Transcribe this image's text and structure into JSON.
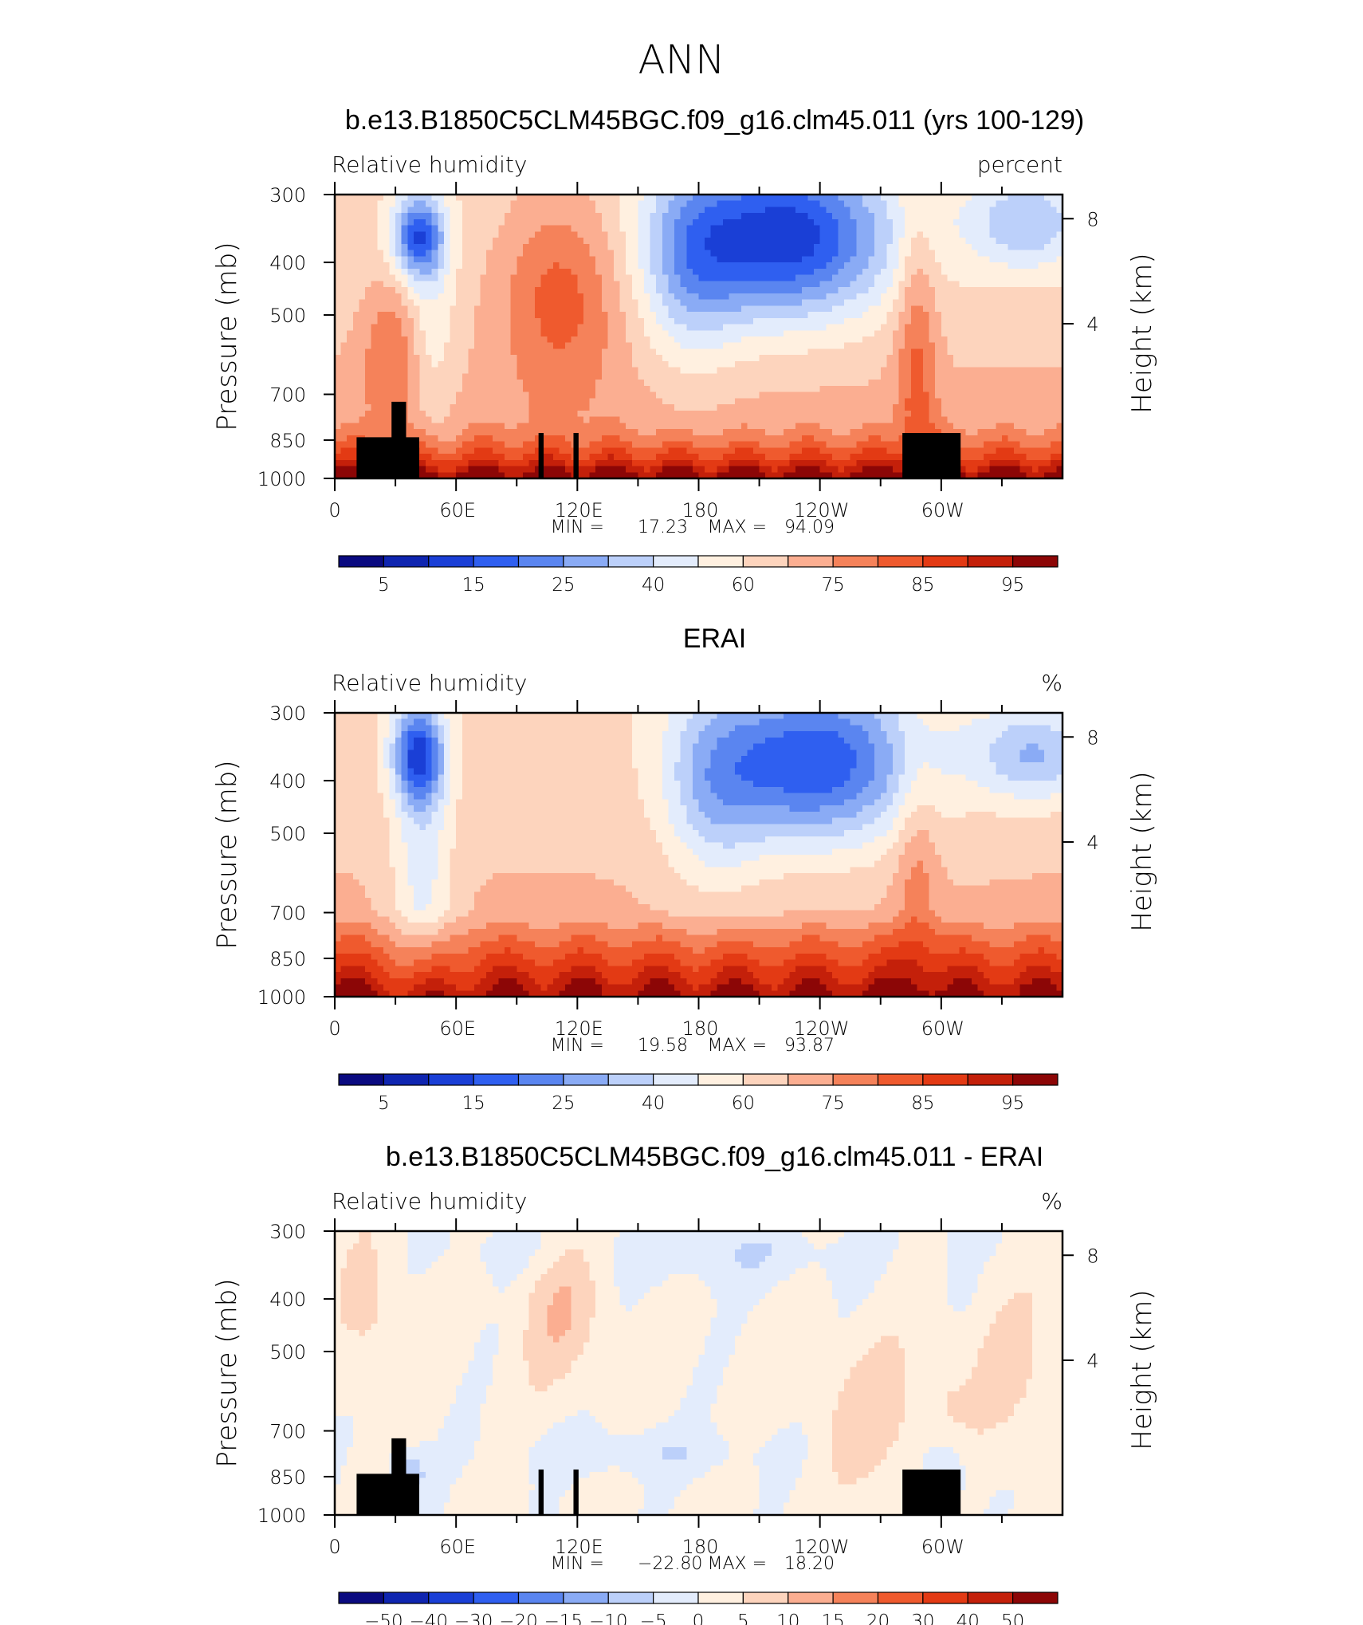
{
  "page": {
    "title": "ANN"
  },
  "chart_data": [
    {
      "type": "heatmap",
      "title": "b.e13.B1850C5CLM45BGC.f09_g16.clm45.011 (yrs 100-129)",
      "left_label": "Relative humidity",
      "right_label": "percent",
      "ylabel": "Pressure (mb)",
      "ylabel_right": "Height (km)",
      "yticks": [
        "300",
        "400",
        "500",
        "700",
        "850",
        "1000"
      ],
      "yticks_right": [
        "8",
        "4"
      ],
      "xticks": [
        "0",
        "60E",
        "120E",
        "180",
        "120W",
        "60W"
      ],
      "stats": {
        "min_label": "MIN =",
        "min": "17.23",
        "max_label": "MAX =",
        "max": "94.09"
      },
      "colorbar": {
        "labels": [
          "5",
          "15",
          "25",
          "40",
          "60",
          "75",
          "85",
          "95"
        ],
        "colors": [
          "#0a0a80",
          "#0f25b0",
          "#1a3fd6",
          "#2f5ff0",
          "#5a85f0",
          "#8aabf5",
          "#bcd0fa",
          "#e3ecfc",
          "#fff0e0",
          "#fdd4bd",
          "#fbae91",
          "#f5825a",
          "#ef5a2e",
          "#e33a14",
          "#c4200a",
          "#8c0606"
        ]
      },
      "vmin": 0,
      "vmax": 100
    },
    {
      "type": "heatmap",
      "title": "ERAI",
      "left_label": "Relative humidity",
      "right_label": "%",
      "ylabel": "Pressure (mb)",
      "ylabel_right": "Height (km)",
      "yticks": [
        "300",
        "400",
        "500",
        "700",
        "850",
        "1000"
      ],
      "yticks_right": [
        "8",
        "4"
      ],
      "xticks": [
        "0",
        "60E",
        "120E",
        "180",
        "120W",
        "60W"
      ],
      "stats": {
        "min_label": "MIN =",
        "min": "19.58",
        "max_label": "MAX =",
        "max": "93.87"
      },
      "colorbar": {
        "labels": [
          "5",
          "15",
          "25",
          "40",
          "60",
          "75",
          "85",
          "95"
        ],
        "colors": [
          "#0a0a80",
          "#0f25b0",
          "#1a3fd6",
          "#2f5ff0",
          "#5a85f0",
          "#8aabf5",
          "#bcd0fa",
          "#e3ecfc",
          "#fff0e0",
          "#fdd4bd",
          "#fbae91",
          "#f5825a",
          "#ef5a2e",
          "#e33a14",
          "#c4200a",
          "#8c0606"
        ]
      },
      "vmin": 0,
      "vmax": 100
    },
    {
      "type": "heatmap",
      "title": "b.e13.B1850C5CLM45BGC.f09_g16.clm45.011 - ERAI",
      "left_label": "Relative humidity",
      "right_label": "%",
      "ylabel": "Pressure (mb)",
      "ylabel_right": "Height (km)",
      "yticks": [
        "300",
        "400",
        "500",
        "700",
        "850",
        "1000"
      ],
      "yticks_right": [
        "8",
        "4"
      ],
      "xticks": [
        "0",
        "60E",
        "120E",
        "180",
        "120W",
        "60W"
      ],
      "stats": {
        "min_label": "MIN =",
        "min": "−22.80",
        "max_label": "MAX =",
        "max": "18.20"
      },
      "colorbar": {
        "labels": [
          "−50",
          "−40",
          "−30",
          "−20",
          "−15",
          "−10",
          "−5",
          "0",
          "5",
          "10",
          "15",
          "20",
          "30",
          "40",
          "50"
        ],
        "colors": [
          "#0a0a80",
          "#0f25b0",
          "#1a3fd6",
          "#2f5ff0",
          "#5a85f0",
          "#8aabf5",
          "#bcd0fa",
          "#e3ecfc",
          "#fff0e0",
          "#fdd4bd",
          "#fbae91",
          "#f5825a",
          "#ef5a2e",
          "#e33a14",
          "#c4200a",
          "#8c0606"
        ]
      },
      "vmin": -60,
      "vmax": 60
    }
  ]
}
